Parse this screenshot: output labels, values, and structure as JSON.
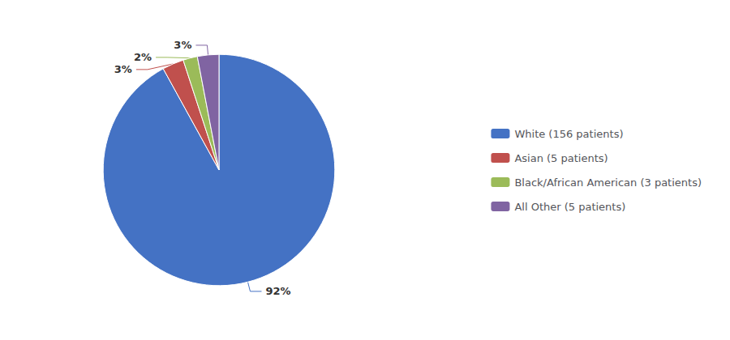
{
  "chart_data": {
    "type": "pie",
    "categories": [
      "White (156 patients)",
      "Asian (5 patients)",
      "Black/African American (3 patients)",
      "All Other (5 patients)"
    ],
    "values": [
      92,
      3,
      2,
      3
    ],
    "value_labels": [
      "92%",
      "3%",
      "2%",
      "3%"
    ],
    "colors": [
      "#4472C4",
      "#C0504D",
      "#9BBB59",
      "#8064A2"
    ],
    "legend": "right",
    "data_labels": true
  }
}
